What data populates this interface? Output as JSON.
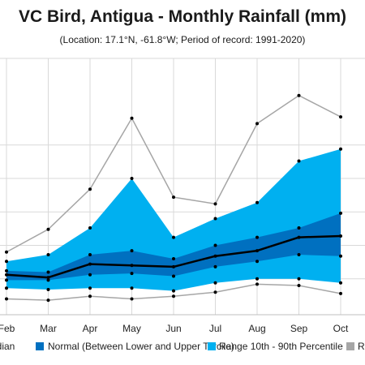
{
  "chart_data": {
    "type": "area",
    "title": "VC Bird, Antigua - Monthly Rainfall (mm)",
    "subtitle": "(Location: 17.1°N, -61.8°W; Period of record: 1991-2020)",
    "categories": [
      "Feb",
      "Mar",
      "Apr",
      "May",
      "Jun",
      "Jul",
      "Aug",
      "Sep",
      "Oct"
    ],
    "grid": true,
    "series": [
      {
        "name": "Range 10th - 90th Percentile",
        "lower": [
          18,
          17,
          18,
          18,
          16,
          22,
          25,
          25,
          22
        ],
        "upper": [
          38,
          43,
          63,
          100,
          56,
          70,
          82,
          113,
          122
        ],
        "color": "#00b0f0"
      },
      {
        "name": "Normal (Between Lower and Upper Tercile)",
        "lower": [
          24,
          24,
          28,
          29,
          27,
          34,
          38,
          43,
          42
        ],
        "upper": [
          31,
          30,
          43,
          46,
          40,
          50,
          56,
          63,
          74
        ],
        "color": "#0070c0"
      },
      {
        "name": "Median",
        "values": [
          28,
          26,
          36,
          35,
          34,
          42,
          46,
          56,
          57
        ],
        "color": "#000000"
      },
      {
        "name": "Range",
        "lower": [
          10,
          9,
          12,
          10,
          12,
          15,
          21,
          20,
          14
        ],
        "upper": [
          45,
          62,
          92,
          145,
          86,
          81,
          141,
          162,
          146
        ],
        "color": "#a6a6a6"
      }
    ],
    "legend": {
      "position": "bottom",
      "entries": [
        "Median",
        "Normal (Between Lower and Upper Tercile)",
        "Range 10th - 90th Percentile",
        "Range"
      ]
    }
  }
}
